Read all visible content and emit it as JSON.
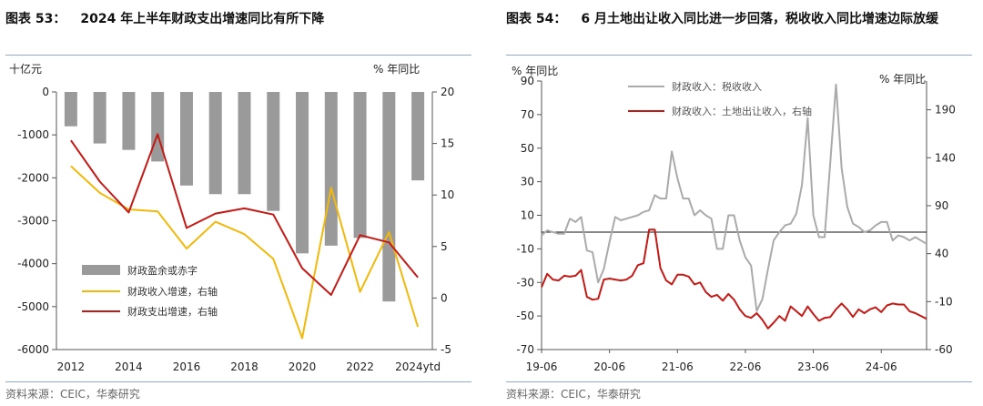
{
  "left": {
    "figure_label": "图表 53：",
    "title": "2024 年上半年财政支出增速同比有所下降",
    "source": "资料来源：CEIC，华泰研究",
    "left_unit": "十亿元",
    "right_unit": "% 年同比",
    "left_ticks": [
      "0",
      "-1000",
      "-2000",
      "-3000",
      "-4000",
      "-5000",
      "-6000"
    ],
    "right_ticks": [
      "20",
      "15",
      "10",
      "5",
      "0",
      "-5"
    ],
    "x_ticks": [
      "2012",
      "2014",
      "2016",
      "2018",
      "2020",
      "2022",
      "2024ytd"
    ]
  },
  "right": {
    "figure_label": "图表 54：",
    "title": "6 月土地出让收入同比进一步回落，税收收入同比增速边际放缓",
    "source": "资料来源：CEIC，华泰研究",
    "left_unit": "% 年同比",
    "right_unit": "% 年同比",
    "left_ticks": [
      "90",
      "70",
      "50",
      "30",
      "10",
      "-10",
      "-30",
      "-50",
      "-70"
    ],
    "right_ticks": [
      "190",
      "140",
      "90",
      "40",
      "-10",
      "-60"
    ],
    "x_ticks": [
      "19-06",
      "20-06",
      "21-06",
      "22-06",
      "23-06",
      "24-06"
    ]
  },
  "colors": {
    "bar": "#9a9a9a",
    "yellow": "#f2b90c",
    "red": "#c41a16",
    "gray_line": "#aaaaaa",
    "rule": "#8eaad0"
  },
  "chart_data": [
    {
      "id": "fig53",
      "type": "bar+line",
      "title": "2024 年上半年财政支出增速同比有所下降",
      "categories": [
        "2012",
        "2013",
        "2014",
        "2015",
        "2016",
        "2017",
        "2018",
        "2019",
        "2020",
        "2021",
        "2022",
        "2023",
        "2024ytd"
      ],
      "ylabel_left": "十亿元",
      "ylabel_right": "% 年同比",
      "ylim_left": [
        -6000,
        0
      ],
      "ylim_right": [
        -5,
        20
      ],
      "series": [
        {
          "name": "财政盈余或赤字",
          "axis": "left",
          "kind": "bar",
          "color": "#9a9a9a",
          "values": [
            -800,
            -1200,
            -1350,
            -1620,
            -2180,
            -2380,
            -2380,
            -2770,
            -3760,
            -3580,
            -3400,
            -4880,
            -2060
          ]
        },
        {
          "name": "财政收入增速，右轴",
          "axis": "right",
          "kind": "line",
          "color": "#f2b90c",
          "values": [
            12.8,
            10.2,
            8.6,
            8.4,
            4.8,
            7.4,
            6.2,
            3.8,
            -3.9,
            10.7,
            0.6,
            6.4,
            -2.8
          ]
        },
        {
          "name": "财政支出增速，右轴",
          "axis": "right",
          "kind": "line",
          "color": "#c41a16",
          "values": [
            15.3,
            11.3,
            8.3,
            15.9,
            6.8,
            8.2,
            8.7,
            8.1,
            2.9,
            0.3,
            6.1,
            5.4,
            2.0
          ]
        }
      ],
      "legend": "bottom-left"
    },
    {
      "id": "fig54",
      "type": "line",
      "title": "6 月土地出让收入同比进一步回落，税收收入同比增速边际放缓",
      "x_start": "19-06",
      "x_ticks": [
        "19-06",
        "20-06",
        "21-06",
        "22-06",
        "23-06",
        "24-06"
      ],
      "ylabel_left": "% 年同比",
      "ylabel_right": "% 年同比",
      "ylim_left": [
        -70,
        90
      ],
      "ylim_right": [
        -60,
        220
      ],
      "series": [
        {
          "name": "财政收入：税收收入",
          "axis": "left",
          "kind": "line",
          "color": "#aaaaaa",
          "values": [
            -2,
            1,
            0,
            -1,
            -1,
            8,
            6,
            9,
            -11,
            -12,
            -30,
            -22,
            -6,
            9,
            7,
            8,
            9,
            10,
            12,
            13,
            22,
            20,
            20,
            48,
            32,
            20,
            20,
            10,
            13,
            10,
            8,
            -10,
            -10,
            10,
            10,
            -5,
            -15,
            -20,
            -47,
            -40,
            -22,
            -5,
            0,
            4,
            5,
            11,
            28,
            68,
            10,
            -3,
            -3,
            42,
            88,
            38,
            15,
            5,
            3,
            0,
            1,
            4,
            6,
            6,
            -5,
            -2,
            -3,
            -5,
            -3,
            -5,
            -7
          ]
        },
        {
          "name": "财政收入：土地出让收入，右轴",
          "axis": "right",
          "kind": "line",
          "color": "#c41a16",
          "values": [
            5,
            19,
            13,
            12,
            17,
            16,
            17,
            23,
            -5,
            -8,
            -7,
            13,
            14,
            13,
            12,
            13,
            17,
            28,
            30,
            65,
            65,
            25,
            12,
            8,
            18,
            18,
            16,
            8,
            10,
            0,
            -5,
            -3,
            -9,
            -2,
            -8,
            -18,
            -25,
            -27,
            -22,
            -29,
            -38,
            -32,
            -25,
            -30,
            -15,
            -20,
            -25,
            -15,
            -23,
            -30,
            -27,
            -26,
            -18,
            -12,
            -18,
            -26,
            -18,
            -22,
            -18,
            -16,
            -21,
            -14,
            -12,
            -13,
            -13,
            -20,
            -22,
            -25,
            -28
          ]
        }
      ],
      "legend": "top-left"
    }
  ]
}
